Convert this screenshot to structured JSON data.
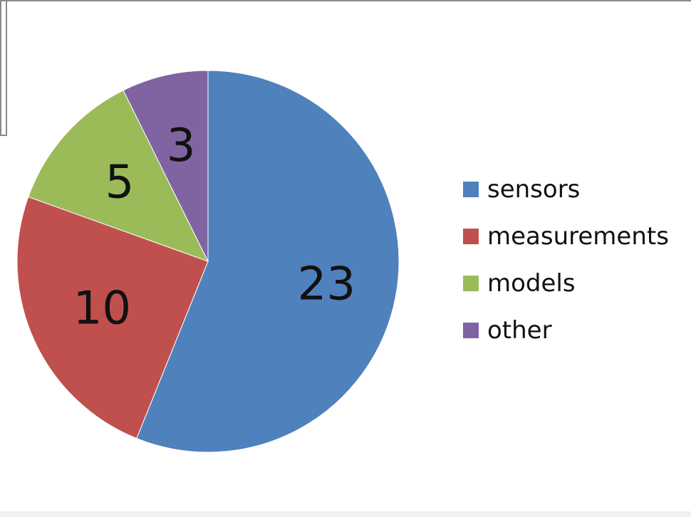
{
  "chart_data": {
    "type": "pie",
    "categories": [
      "sensors",
      "measurements",
      "models",
      "other"
    ],
    "values": [
      23,
      10,
      5,
      3
    ],
    "colors": [
      "#4f81bd",
      "#c0504d",
      "#9bbb59",
      "#8064a2"
    ],
    "legend_position": "right",
    "data_labels": [
      "23",
      "10",
      "5",
      "3"
    ],
    "start_angle": "12 o'clock",
    "direction": "clockwise"
  }
}
